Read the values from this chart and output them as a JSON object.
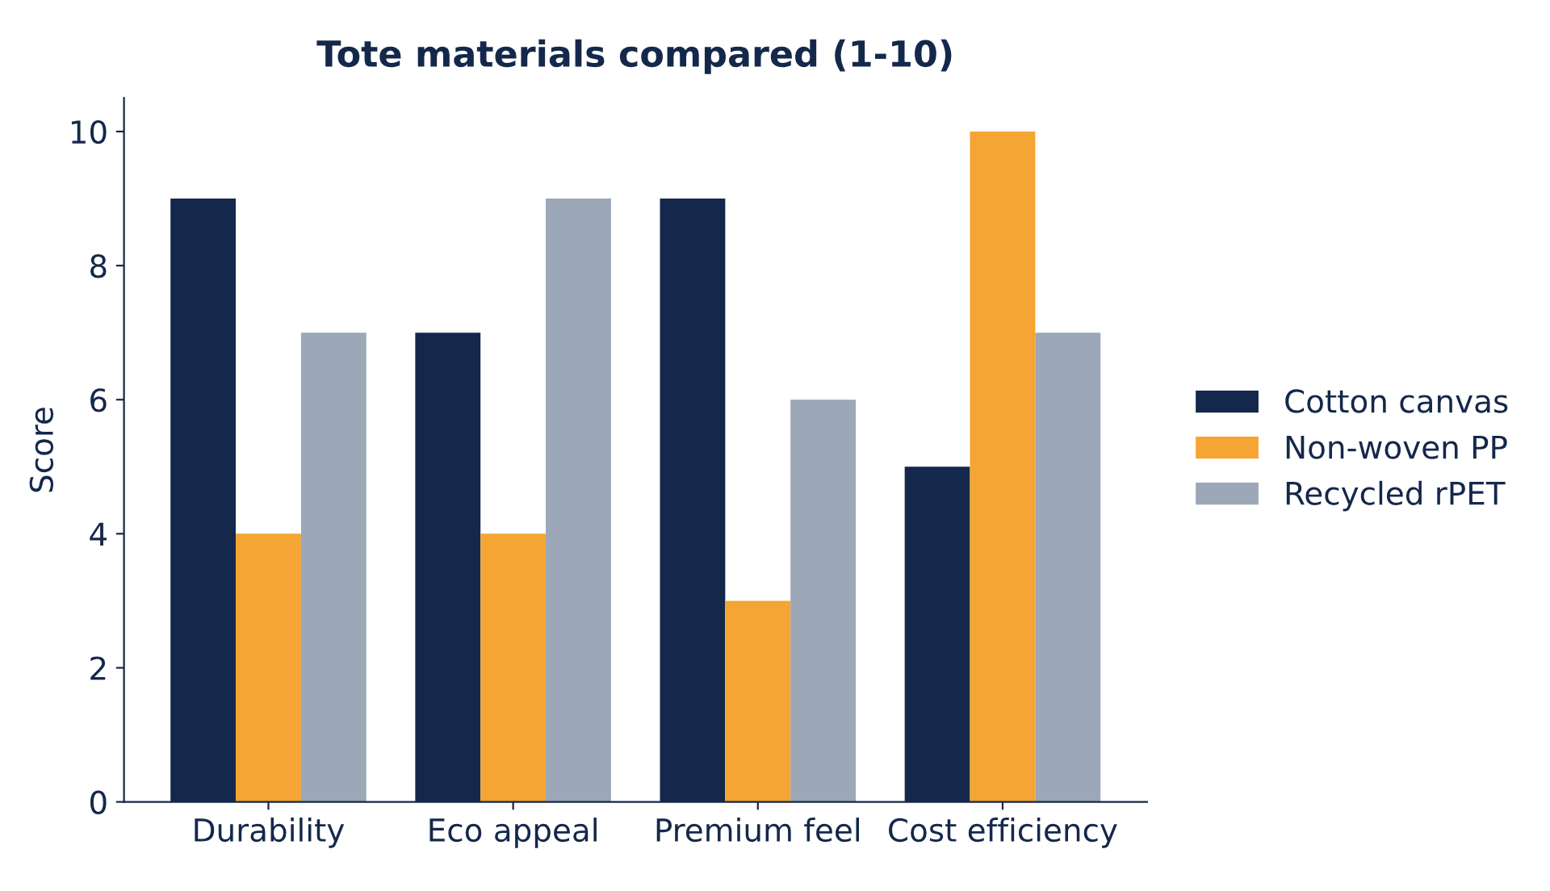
{
  "chart_data": {
    "type": "bar",
    "title": "Tote materials compared (1-10)",
    "ylabel": "Score",
    "categories": [
      "Durability",
      "Eco appeal",
      "Premium feel",
      "Cost efficiency"
    ],
    "series": [
      {
        "name": "Cotton canvas",
        "color": "#14284b",
        "values": [
          9,
          7,
          9,
          5
        ]
      },
      {
        "name": "Non-woven PP",
        "color": "#f5a533",
        "values": [
          4,
          4,
          3,
          10
        ]
      },
      {
        "name": "Recycled rPET",
        "color": "#9ca7b7",
        "values": [
          7,
          9,
          6,
          7
        ]
      }
    ],
    "ylim": [
      0,
      10.5
    ],
    "yticks": [
      0,
      2,
      4,
      6,
      8,
      10
    ],
    "grid": false,
    "legend": "right"
  }
}
